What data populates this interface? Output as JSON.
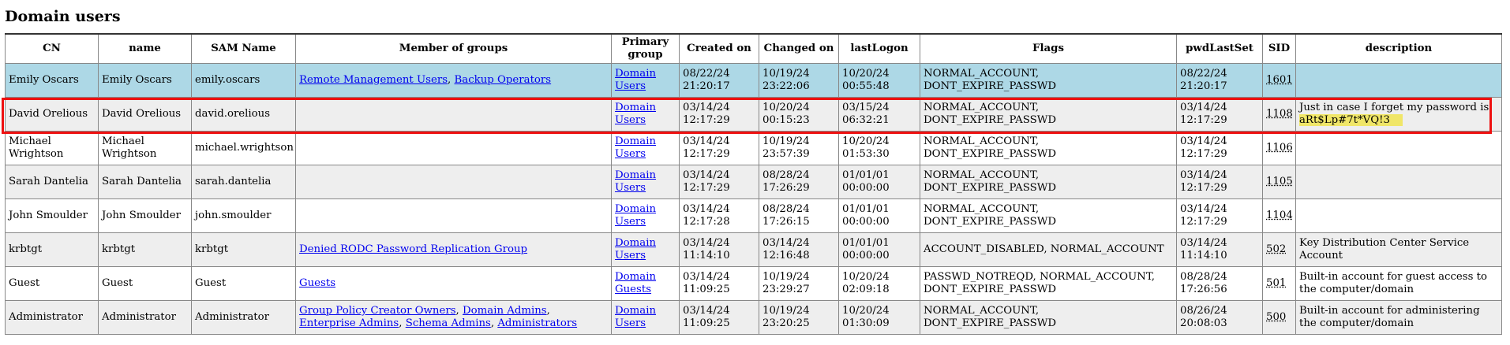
{
  "page_title": "Domain users",
  "columns": [
    "CN",
    "name",
    "SAM Name",
    "Member of groups",
    "Primary group",
    "Created on",
    "Changed on",
    "lastLogon",
    "Flags",
    "pwdLastSet",
    "SID",
    "description"
  ],
  "rows": [
    {
      "cn": "Emily Oscars",
      "name": "Emily Oscars",
      "sam": "emily.oscars",
      "groups": [
        "Remote Management Users",
        "Backup Operators"
      ],
      "primary_group": "Domain Users",
      "created": "08/22/24 21:20:17",
      "changed": "10/19/24 23:22:06",
      "last_logon": "10/20/24 00:55:48",
      "flags": "NORMAL_ACCOUNT, DONT_EXPIRE_PASSWD",
      "pwd_last_set": "08/22/24 21:20:17",
      "sid": "1601",
      "description": "",
      "style": "selected"
    },
    {
      "cn": "David Orelious",
      "name": "David Orelious",
      "sam": "david.orelious",
      "groups": [],
      "primary_group": "Domain Users",
      "created": "03/14/24 12:17:29",
      "changed": "10/20/24 00:15:23",
      "last_logon": "03/15/24 06:32:21",
      "flags": "NORMAL_ACCOUNT, DONT_EXPIRE_PASSWD",
      "pwd_last_set": "03/14/24 12:17:29",
      "sid": "1108",
      "description": "Just in case I forget my password is",
      "description_highlight": "aRt$Lp#7t*VQ!3",
      "style": "alt"
    },
    {
      "cn": "Michael Wrightson",
      "name": "Michael Wrightson",
      "sam": "michael.wrightson",
      "groups": [],
      "primary_group": "Domain Users",
      "created": "03/14/24 12:17:29",
      "changed": "10/19/24 23:57:39",
      "last_logon": "10/20/24 01:53:30",
      "flags": "NORMAL_ACCOUNT, DONT_EXPIRE_PASSWD",
      "pwd_last_set": "03/14/24 12:17:29",
      "sid": "1106",
      "description": "",
      "style": "plain"
    },
    {
      "cn": "Sarah Dantelia",
      "name": "Sarah Dantelia",
      "sam": "sarah.dantelia",
      "groups": [],
      "primary_group": "Domain Users",
      "created": "03/14/24 12:17:29",
      "changed": "08/28/24 17:26:29",
      "last_logon": "01/01/01 00:00:00",
      "flags": "NORMAL_ACCOUNT, DONT_EXPIRE_PASSWD",
      "pwd_last_set": "03/14/24 12:17:29",
      "sid": "1105",
      "description": "",
      "style": "alt"
    },
    {
      "cn": "John Smoulder",
      "name": "John Smoulder",
      "sam": "john.smoulder",
      "groups": [],
      "primary_group": "Domain Users",
      "created": "03/14/24 12:17:28",
      "changed": "08/28/24 17:26:15",
      "last_logon": "01/01/01 00:00:00",
      "flags": "NORMAL_ACCOUNT, DONT_EXPIRE_PASSWD",
      "pwd_last_set": "03/14/24 12:17:29",
      "sid": "1104",
      "description": "",
      "style": "plain"
    },
    {
      "cn": "krbtgt",
      "name": "krbtgt",
      "sam": "krbtgt",
      "groups": [
        "Denied RODC Password Replication Group"
      ],
      "primary_group": "Domain Users",
      "created": "03/14/24 11:14:10",
      "changed": "03/14/24 12:16:48",
      "last_logon": "01/01/01 00:00:00",
      "flags": "ACCOUNT_DISABLED, NORMAL_ACCOUNT",
      "pwd_last_set": "03/14/24 11:14:10",
      "sid": "502",
      "description": "Key Distribution Center Service Account",
      "style": "alt"
    },
    {
      "cn": "Guest",
      "name": "Guest",
      "sam": "Guest",
      "groups": [
        "Guests"
      ],
      "primary_group": "Domain Guests",
      "created": "03/14/24 11:09:25",
      "changed": "10/19/24 23:29:27",
      "last_logon": "10/20/24 02:09:18",
      "flags": "PASSWD_NOTREQD, NORMAL_ACCOUNT, DONT_EXPIRE_PASSWD",
      "pwd_last_set": "08/28/24 17:26:56",
      "sid": "501",
      "description": "Built-in account for guest access to the computer/domain",
      "style": "plain"
    },
    {
      "cn": "Administrator",
      "name": "Administrator",
      "sam": "Administrator",
      "groups": [
        "Group Policy Creator Owners",
        "Domain Admins",
        "Enterprise Admins",
        "Schema Admins",
        "Administrators"
      ],
      "primary_group": "Domain Users",
      "created": "03/14/24 11:09:25",
      "changed": "10/19/24 23:20:25",
      "last_logon": "10/20/24 01:30:09",
      "flags": "NORMAL_ACCOUNT, DONT_EXPIRE_PASSWD",
      "pwd_last_set": "08/26/24 20:08:03",
      "sid": "500",
      "description": "Built-in account for administering the computer/domain",
      "style": "alt"
    }
  ],
  "colors": {
    "selected_row": "#add8e6",
    "alt_row": "#eeeeee",
    "link": "#0000ee",
    "highlight_box": "#ee1111",
    "text_highlight": "#f0e668"
  }
}
